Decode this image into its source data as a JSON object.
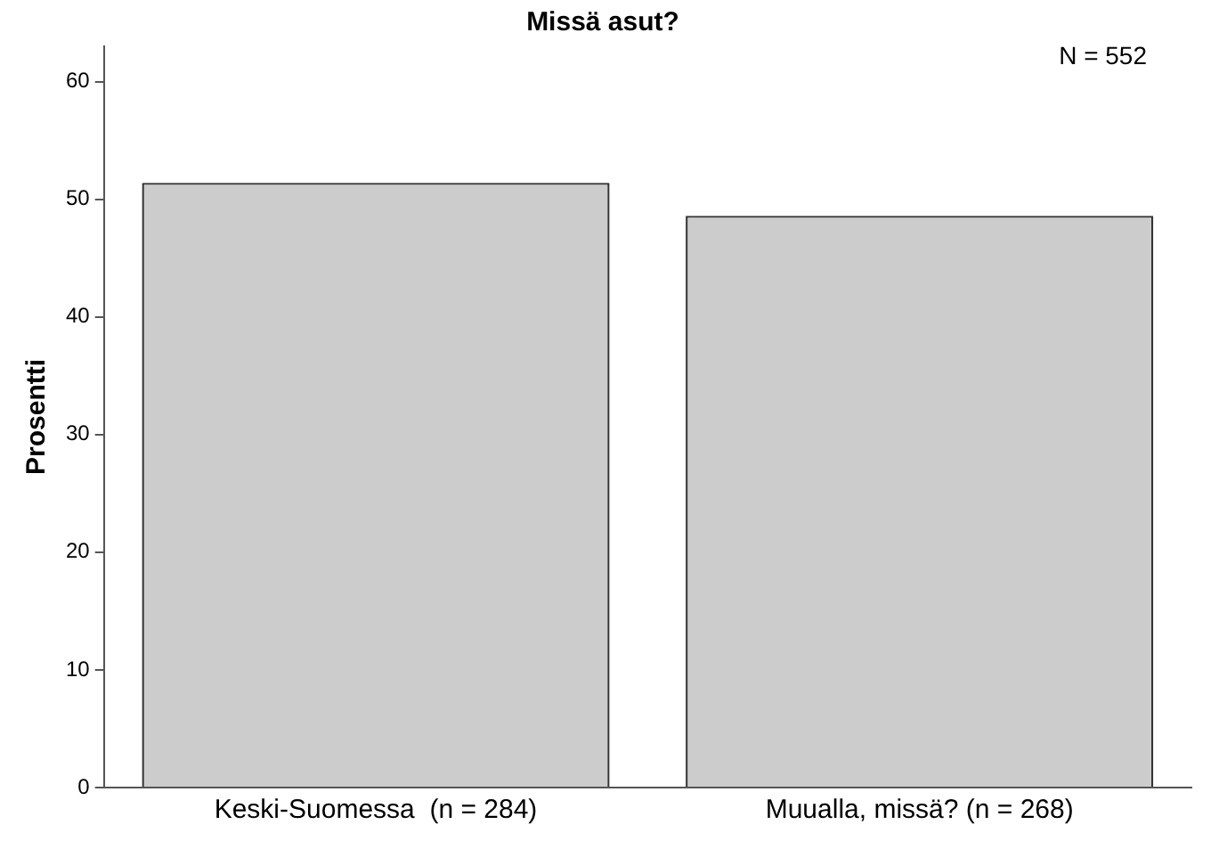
{
  "chart_data": {
    "type": "bar",
    "title": "Missä asut?",
    "ylabel": "Prosentti",
    "categories": [
      "Keski-Suomessa  (n = 284)",
      "Muualla, missä? (n = 268)"
    ],
    "values": [
      51.4,
      48.6
    ],
    "color": "#cccccc",
    "ylim": [
      0,
      63
    ],
    "yticks": [
      0,
      10,
      20,
      30,
      40,
      50,
      60
    ],
    "grid": false,
    "legend": false,
    "annotations": [
      "N = 552"
    ]
  }
}
